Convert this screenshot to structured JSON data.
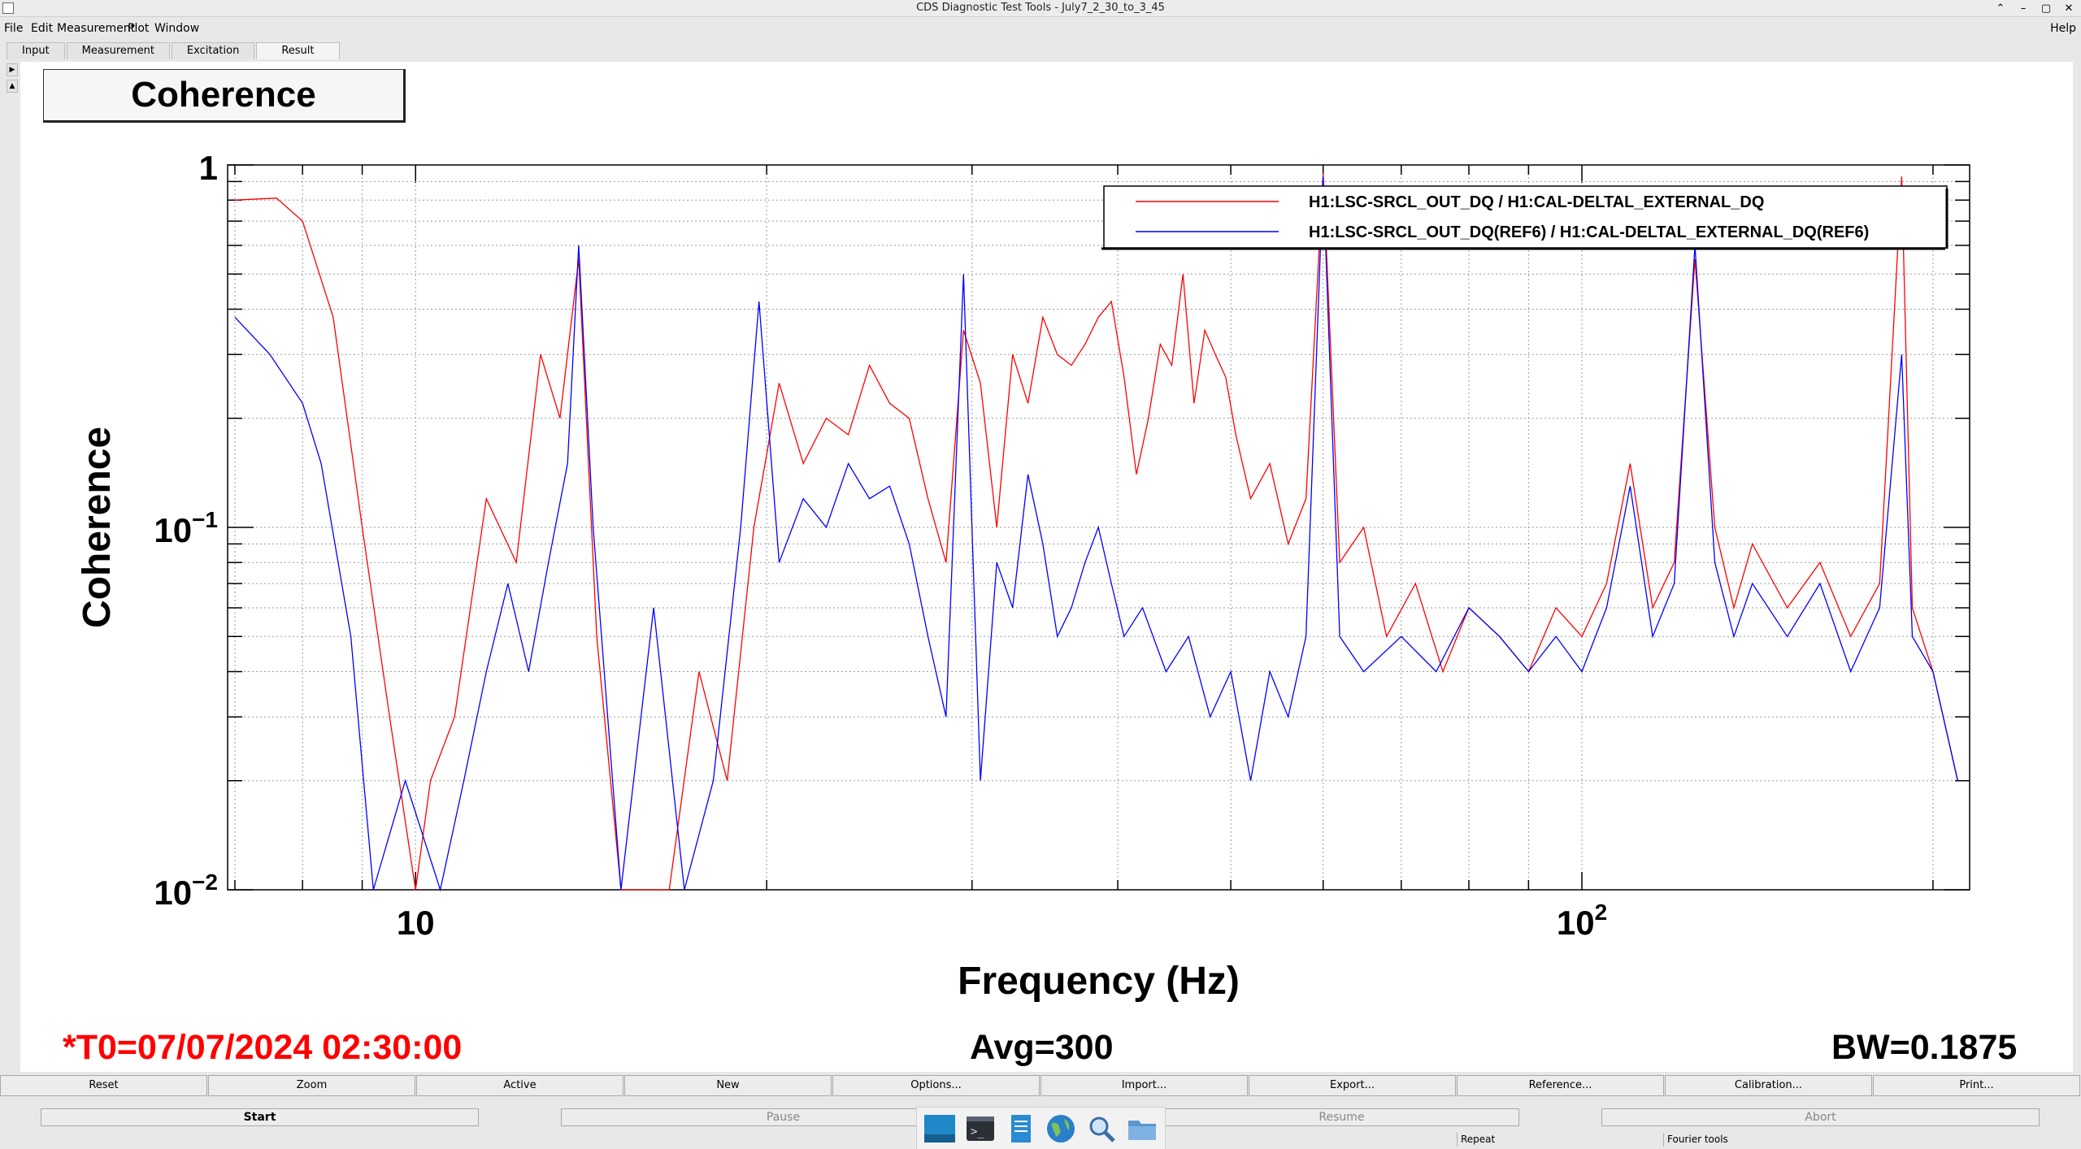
{
  "window": {
    "title": "CDS Diagnostic Test Tools - July7_2_30_to_3_45",
    "controls": [
      "⌃",
      "–",
      "▢",
      "✕"
    ]
  },
  "menu": {
    "items": [
      "File",
      "Edit",
      "Measurement",
      "Plot",
      "Window"
    ],
    "help": "Help"
  },
  "tabs": [
    "Input",
    "Measurement",
    "Excitation",
    "Result"
  ],
  "plot": {
    "panel_title": "Coherence",
    "t0": "*T0=07/07/2024 02:30:00",
    "avg": "Avg=300",
    "bw": "BW=0.1875"
  },
  "chart_data": {
    "type": "line",
    "xlabel": "Frequency (Hz)",
    "ylabel": "Coherence",
    "xscale": "log",
    "yscale": "log",
    "xlim": [
      6.9,
      215
    ],
    "ylim": [
      0.01,
      1
    ],
    "x_tick_labels": [
      "10",
      "10^2"
    ],
    "y_tick_labels": [
      "1",
      "10^-1",
      "10^-2"
    ],
    "grid": true,
    "legend_position": "top-right",
    "series": [
      {
        "name": "H1:LSC-SRCL_OUT_DQ / H1:CAL-DELTAL_EXTERNAL_DQ",
        "color": "#ff0000",
        "points": [
          [
            7.0,
            0.8
          ],
          [
            7.6,
            0.81
          ],
          [
            8.0,
            0.7
          ],
          [
            8.5,
            0.38
          ],
          [
            9.0,
            0.1
          ],
          [
            9.5,
            0.03
          ],
          [
            10.0,
            0.01
          ],
          [
            10.3,
            0.02
          ],
          [
            10.8,
            0.03
          ],
          [
            11.5,
            0.12
          ],
          [
            12.2,
            0.08
          ],
          [
            12.8,
            0.3
          ],
          [
            13.3,
            0.2
          ],
          [
            13.8,
            0.55
          ],
          [
            14.3,
            0.05
          ],
          [
            15.0,
            0.01
          ],
          [
            16.5,
            0.01
          ],
          [
            17.5,
            0.04
          ],
          [
            18.5,
            0.02
          ],
          [
            19.5,
            0.1
          ],
          [
            20.5,
            0.25
          ],
          [
            21.5,
            0.15
          ],
          [
            22.5,
            0.2
          ],
          [
            23.5,
            0.18
          ],
          [
            24.5,
            0.28
          ],
          [
            25.5,
            0.22
          ],
          [
            26.5,
            0.2
          ],
          [
            27.5,
            0.12
          ],
          [
            28.5,
            0.08
          ],
          [
            29.5,
            0.35
          ],
          [
            30.5,
            0.25
          ],
          [
            31.5,
            0.1
          ],
          [
            32.5,
            0.3
          ],
          [
            33.5,
            0.22
          ],
          [
            34.5,
            0.38
          ],
          [
            35.5,
            0.3
          ],
          [
            36.5,
            0.28
          ],
          [
            37.5,
            0.32
          ],
          [
            38.5,
            0.38
          ],
          [
            39.5,
            0.42
          ],
          [
            40.5,
            0.26
          ],
          [
            41.5,
            0.14
          ],
          [
            42.5,
            0.2
          ],
          [
            43.5,
            0.32
          ],
          [
            44.5,
            0.28
          ],
          [
            45.5,
            0.5
          ],
          [
            46.5,
            0.22
          ],
          [
            47.5,
            0.35
          ],
          [
            48.5,
            0.3
          ],
          [
            49.5,
            0.26
          ],
          [
            50.5,
            0.18
          ],
          [
            52,
            0.12
          ],
          [
            54,
            0.15
          ],
          [
            56,
            0.09
          ],
          [
            58,
            0.12
          ],
          [
            60,
            0.95
          ],
          [
            62,
            0.08
          ],
          [
            65,
            0.1
          ],
          [
            68,
            0.05
          ],
          [
            72,
            0.07
          ],
          [
            76,
            0.04
          ],
          [
            80,
            0.06
          ],
          [
            85,
            0.05
          ],
          [
            90,
            0.04
          ],
          [
            95,
            0.06
          ],
          [
            100,
            0.05
          ],
          [
            105,
            0.07
          ],
          [
            110,
            0.15
          ],
          [
            115,
            0.06
          ],
          [
            120,
            0.08
          ],
          [
            125,
            0.55
          ],
          [
            130,
            0.1
          ],
          [
            135,
            0.06
          ],
          [
            140,
            0.09
          ],
          [
            150,
            0.06
          ],
          [
            160,
            0.08
          ],
          [
            170,
            0.05
          ],
          [
            180,
            0.07
          ],
          [
            188,
            0.93
          ],
          [
            192,
            0.06
          ],
          [
            200,
            0.04
          ],
          [
            210,
            0.02
          ]
        ]
      },
      {
        "name": "H1:LSC-SRCL_OUT_DQ(REF6) / H1:CAL-DELTAL_EXTERNAL_DQ(REF6)",
        "color": "#0000ff",
        "points": [
          [
            7.0,
            0.38
          ],
          [
            7.5,
            0.3
          ],
          [
            8.0,
            0.22
          ],
          [
            8.3,
            0.15
          ],
          [
            8.8,
            0.05
          ],
          [
            9.2,
            0.01
          ],
          [
            9.8,
            0.02
          ],
          [
            10.5,
            0.01
          ],
          [
            11.0,
            0.02
          ],
          [
            11.5,
            0.04
          ],
          [
            12.0,
            0.07
          ],
          [
            12.5,
            0.04
          ],
          [
            13.0,
            0.08
          ],
          [
            13.5,
            0.15
          ],
          [
            13.8,
            0.6
          ],
          [
            14.2,
            0.1
          ],
          [
            15.0,
            0.01
          ],
          [
            16.0,
            0.06
          ],
          [
            17.0,
            0.01
          ],
          [
            18.0,
            0.02
          ],
          [
            19.0,
            0.1
          ],
          [
            19.7,
            0.42
          ],
          [
            20.5,
            0.08
          ],
          [
            21.5,
            0.12
          ],
          [
            22.5,
            0.1
          ],
          [
            23.5,
            0.15
          ],
          [
            24.5,
            0.12
          ],
          [
            25.5,
            0.13
          ],
          [
            26.5,
            0.09
          ],
          [
            27.5,
            0.05
          ],
          [
            28.5,
            0.03
          ],
          [
            29.5,
            0.5
          ],
          [
            30.5,
            0.02
          ],
          [
            31.5,
            0.08
          ],
          [
            32.5,
            0.06
          ],
          [
            33.5,
            0.14
          ],
          [
            34.5,
            0.09
          ],
          [
            35.5,
            0.05
          ],
          [
            36.5,
            0.06
          ],
          [
            37.5,
            0.08
          ],
          [
            38.5,
            0.1
          ],
          [
            39.5,
            0.07
          ],
          [
            40.5,
            0.05
          ],
          [
            42,
            0.06
          ],
          [
            44,
            0.04
          ],
          [
            46,
            0.05
          ],
          [
            48,
            0.03
          ],
          [
            50,
            0.04
          ],
          [
            52,
            0.02
          ],
          [
            54,
            0.04
          ],
          [
            56,
            0.03
          ],
          [
            58,
            0.05
          ],
          [
            60,
            0.93
          ],
          [
            62,
            0.05
          ],
          [
            65,
            0.04
          ],
          [
            70,
            0.05
          ],
          [
            75,
            0.04
          ],
          [
            80,
            0.06
          ],
          [
            85,
            0.05
          ],
          [
            90,
            0.04
          ],
          [
            95,
            0.05
          ],
          [
            100,
            0.04
          ],
          [
            105,
            0.06
          ],
          [
            110,
            0.13
          ],
          [
            115,
            0.05
          ],
          [
            120,
            0.07
          ],
          [
            125,
            0.6
          ],
          [
            130,
            0.08
          ],
          [
            135,
            0.05
          ],
          [
            140,
            0.07
          ],
          [
            150,
            0.05
          ],
          [
            160,
            0.07
          ],
          [
            170,
            0.04
          ],
          [
            180,
            0.06
          ],
          [
            188,
            0.3
          ],
          [
            192,
            0.05
          ],
          [
            200,
            0.04
          ],
          [
            210,
            0.02
          ]
        ]
      }
    ]
  },
  "buttons_row1": [
    "Reset",
    "Zoom",
    "Active",
    "New",
    "Options...",
    "Import...",
    "Export...",
    "Reference...",
    "Calibration...",
    "Print..."
  ],
  "buttons_row2": {
    "start": "Start",
    "pause": "Pause",
    "resume": "Resume",
    "abort": "Abort"
  },
  "status": {
    "repeat": "Repeat",
    "fourier": "Fourier tools"
  },
  "taskbar_icons": [
    "desktop-icon",
    "terminal-icon",
    "text-editor-icon",
    "web-browser-icon",
    "search-icon",
    "file-manager-icon"
  ]
}
